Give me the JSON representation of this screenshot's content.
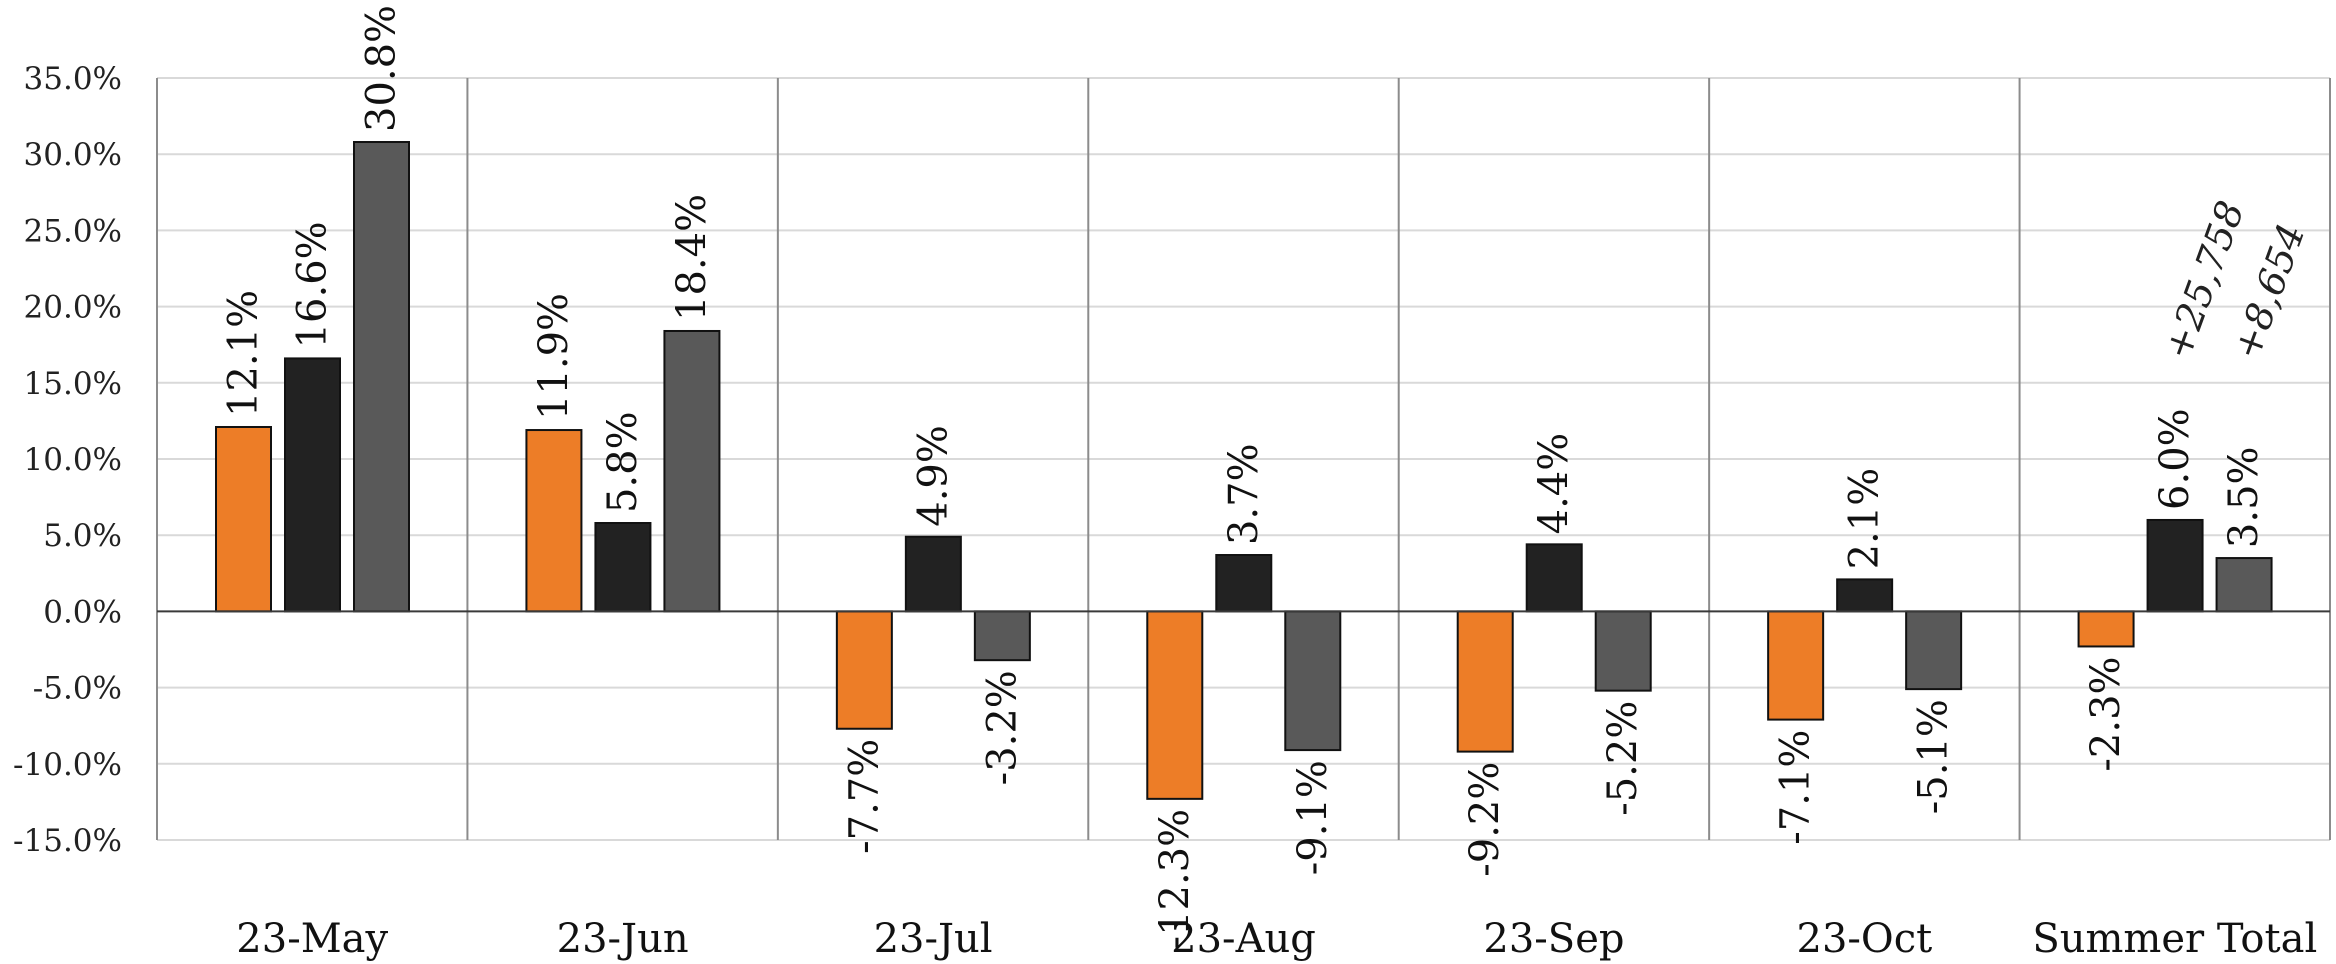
{
  "chart_data": {
    "type": "bar",
    "categories": [
      "23-May",
      "23-Jun",
      "23-Jul",
      "23-Aug",
      "23-Sep",
      "23-Oct",
      "Summer Total"
    ],
    "series": [
      {
        "color": "#ED7D27",
        "values": [
          12.1,
          11.9,
          -7.7,
          -12.3,
          -9.2,
          -7.1,
          -2.3
        ],
        "labels": [
          "12.1%",
          "11.9%",
          "-7.7%",
          "-12.3%",
          "-9.2%",
          "-7.1%",
          "-2.3%"
        ]
      },
      {
        "color": "#222222",
        "values": [
          16.6,
          5.8,
          4.9,
          3.7,
          4.4,
          2.1,
          6.0
        ],
        "labels": [
          "16.6%",
          "5.8%",
          "4.9%",
          "3.7%",
          "4.4%",
          "2.1%",
          "6.0%"
        ]
      },
      {
        "color": "#595959",
        "values": [
          30.8,
          18.4,
          -3.2,
          -9.1,
          -5.2,
          -5.1,
          3.5
        ],
        "labels": [
          "30.8%",
          "18.4%",
          "-3.2%",
          "-9.1%",
          "-5.2%",
          "-5.1%",
          "3.5%"
        ]
      }
    ],
    "ylim": [
      -15,
      35
    ],
    "yticks": [
      35,
      30,
      25,
      20,
      15,
      10,
      5,
      0,
      -5,
      -10,
      -15
    ],
    "ytick_labels": [
      "35.0%",
      "30.0%",
      "25.0%",
      "20.0%",
      "15.0%",
      "10.0%",
      "5.0%",
      "0.0%",
      "-5.0%",
      "-10.0%",
      "-15.0%"
    ],
    "grid": true,
    "annotations": [
      {
        "category": "Summer Total",
        "series": 1,
        "text": "+25,758"
      },
      {
        "category": "Summer Total",
        "series": 2,
        "text": "+8,654"
      }
    ]
  }
}
